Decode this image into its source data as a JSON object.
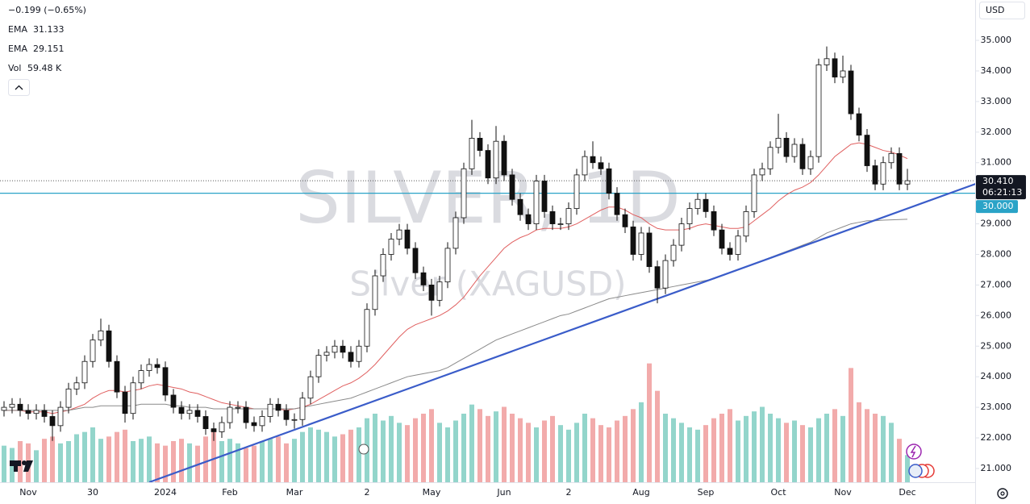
{
  "chart_data": {
    "type": "candlestick",
    "watermark": [
      "SILVER, 1D",
      "Silver (XAGUSD)"
    ],
    "change": "−0.199 (−0.65%)",
    "currency": "USD",
    "categories": [
      null,
      null,
      null,
      "Nov",
      null,
      null,
      null,
      null,
      null,
      null,
      null,
      "30",
      null,
      null,
      null,
      null,
      null,
      null,
      null,
      null,
      "2024",
      null,
      null,
      null,
      null,
      null,
      null,
      null,
      "Feb",
      null,
      null,
      null,
      null,
      null,
      null,
      null,
      "Mar",
      null,
      null,
      null,
      null,
      null,
      null,
      null,
      null,
      "2",
      null,
      null,
      null,
      null,
      null,
      null,
      null,
      "May",
      null,
      null,
      null,
      null,
      null,
      null,
      null,
      null,
      "Jun",
      null,
      null,
      null,
      null,
      null,
      null,
      null,
      "2",
      null,
      null,
      null,
      null,
      null,
      null,
      null,
      null,
      "Aug",
      null,
      null,
      null,
      null,
      null,
      null,
      null,
      "Sep",
      null,
      null,
      null,
      null,
      null,
      null,
      null,
      null,
      "Oct",
      null,
      null,
      null,
      null,
      null,
      null,
      null,
      "Nov",
      null,
      null,
      null,
      null,
      null,
      null,
      null,
      "Dec"
    ],
    "open": [
      22.9,
      23.0,
      23.1,
      22.9,
      22.8,
      22.9,
      22.7,
      22.4,
      23.0,
      23.6,
      23.8,
      24.5,
      25.2,
      25.5,
      24.5,
      23.5,
      22.8,
      23.8,
      24.2,
      24.4,
      24.3,
      23.4,
      23.0,
      22.8,
      22.9,
      22.7,
      22.3,
      22.2,
      22.5,
      23.0,
      23.0,
      22.5,
      22.4,
      22.7,
      23.1,
      22.9,
      22.6,
      22.6,
      23.3,
      24.0,
      24.7,
      24.8,
      25.0,
      24.8,
      24.5,
      25.0,
      26.2,
      27.3,
      28.0,
      28.5,
      28.8,
      28.2,
      27.4,
      27.0,
      26.5,
      27.1,
      28.2,
      29.2,
      30.8,
      31.8,
      31.4,
      30.5,
      31.7,
      30.6,
      29.8,
      29.3,
      29.0,
      30.4,
      29.4,
      29.0,
      29.0,
      29.5,
      30.6,
      31.2,
      31.0,
      30.8,
      30.0,
      29.3,
      28.9,
      28.0,
      28.7,
      27.6,
      26.9,
      27.8,
      28.3,
      29.0,
      29.5,
      29.8,
      29.4,
      28.8,
      28.2,
      28.0,
      28.6,
      29.4,
      30.6,
      30.8,
      31.5,
      31.8,
      31.2,
      31.6,
      30.8,
      31.2,
      34.2,
      34.4,
      33.8,
      34.0,
      32.6,
      31.9,
      30.9,
      30.3,
      31.0,
      31.3,
      30.3
    ],
    "high": [
      23.2,
      23.3,
      23.3,
      23.1,
      23.1,
      23.1,
      22.9,
      23.2,
      23.8,
      24.0,
      24.7,
      25.4,
      25.9,
      25.7,
      24.7,
      23.7,
      24.0,
      24.4,
      24.6,
      24.6,
      24.5,
      23.6,
      23.2,
      23.1,
      23.1,
      22.9,
      22.5,
      22.7,
      23.2,
      23.2,
      23.2,
      22.7,
      22.9,
      23.3,
      23.3,
      23.1,
      22.8,
      23.5,
      24.2,
      24.9,
      25.0,
      25.2,
      25.2,
      25.0,
      25.2,
      26.4,
      27.5,
      28.2,
      28.7,
      29.0,
      29.0,
      28.4,
      27.6,
      27.2,
      27.3,
      28.4,
      29.4,
      31.0,
      32.4,
      32.0,
      31.6,
      32.2,
      31.9,
      30.8,
      30.0,
      29.5,
      30.6,
      30.6,
      29.6,
      29.2,
      29.7,
      30.8,
      31.4,
      31.7,
      31.2,
      31.0,
      30.2,
      29.5,
      29.1,
      28.9,
      28.9,
      27.8,
      28.0,
      28.5,
      29.2,
      29.7,
      30.0,
      30.0,
      29.6,
      29.0,
      28.4,
      28.8,
      29.6,
      30.8,
      31.0,
      31.7,
      32.6,
      32.0,
      31.8,
      31.8,
      31.4,
      34.4,
      34.8,
      34.6,
      34.5,
      34.2,
      32.8,
      32.1,
      31.1,
      31.2,
      31.5,
      31.5,
      30.8
    ],
    "low": [
      22.7,
      22.8,
      22.7,
      22.6,
      22.6,
      22.5,
      21.9,
      22.2,
      22.8,
      23.4,
      23.6,
      24.3,
      25.0,
      24.3,
      23.3,
      22.5,
      22.6,
      23.6,
      24.0,
      24.1,
      23.2,
      22.8,
      22.6,
      22.6,
      22.5,
      22.1,
      21.9,
      22.0,
      22.3,
      22.8,
      22.3,
      22.2,
      22.2,
      22.5,
      22.7,
      22.4,
      22.3,
      22.4,
      23.1,
      23.8,
      24.5,
      24.6,
      24.6,
      24.3,
      24.3,
      24.8,
      26.0,
      27.1,
      27.8,
      28.3,
      28.0,
      27.2,
      26.8,
      26.0,
      26.3,
      26.9,
      28.0,
      29.0,
      30.6,
      31.2,
      30.3,
      30.3,
      30.4,
      29.6,
      29.1,
      28.8,
      28.8,
      29.2,
      28.8,
      28.8,
      28.8,
      29.3,
      30.4,
      30.8,
      30.6,
      29.8,
      29.1,
      28.7,
      27.8,
      27.8,
      27.4,
      26.4,
      26.7,
      27.6,
      28.1,
      28.8,
      29.3,
      29.2,
      28.6,
      28.0,
      27.8,
      27.8,
      28.4,
      29.2,
      30.4,
      30.6,
      31.3,
      31.0,
      31.0,
      30.6,
      30.6,
      31.0,
      34.0,
      33.6,
      33.6,
      32.4,
      31.7,
      30.7,
      30.1,
      30.1,
      30.8,
      30.1,
      30.1
    ],
    "close": [
      23.0,
      23.1,
      22.9,
      22.8,
      22.9,
      22.7,
      22.4,
      23.0,
      23.6,
      23.8,
      24.5,
      25.2,
      25.5,
      24.5,
      23.5,
      22.8,
      23.8,
      24.2,
      24.4,
      24.3,
      23.4,
      23.0,
      22.8,
      22.9,
      22.7,
      22.3,
      22.2,
      22.5,
      23.0,
      23.0,
      22.5,
      22.4,
      22.7,
      23.1,
      22.9,
      22.6,
      22.6,
      23.3,
      24.0,
      24.7,
      24.8,
      25.0,
      24.8,
      24.5,
      25.0,
      26.2,
      27.3,
      28.0,
      28.5,
      28.8,
      28.2,
      27.4,
      27.0,
      26.5,
      27.1,
      28.2,
      29.2,
      30.8,
      31.8,
      31.4,
      30.5,
      31.7,
      30.6,
      29.8,
      29.3,
      29.0,
      30.4,
      29.4,
      29.0,
      29.0,
      29.5,
      30.6,
      31.2,
      31.0,
      30.8,
      30.0,
      29.3,
      28.9,
      28.0,
      28.7,
      27.6,
      26.9,
      27.8,
      28.3,
      29.0,
      29.5,
      29.8,
      29.4,
      28.8,
      28.2,
      28.0,
      28.6,
      29.4,
      30.6,
      30.8,
      31.5,
      31.8,
      31.2,
      31.6,
      30.8,
      31.2,
      34.2,
      34.4,
      33.8,
      34.0,
      32.6,
      31.9,
      30.9,
      30.3,
      31.0,
      31.3,
      30.3,
      30.41
    ],
    "up_color": "#ffffff",
    "down_color": "#111111",
    "series": [
      {
        "name": "EMA",
        "color": "#e06060",
        "value_label": "31.133",
        "values": [
          22.9,
          22.9,
          22.9,
          22.85,
          22.85,
          22.85,
          22.8,
          22.85,
          22.9,
          23.0,
          23.1,
          23.3,
          23.45,
          23.55,
          23.55,
          23.5,
          23.55,
          23.6,
          23.7,
          23.75,
          23.7,
          23.65,
          23.6,
          23.5,
          23.45,
          23.35,
          23.25,
          23.15,
          23.1,
          23.05,
          23.0,
          22.95,
          22.95,
          22.95,
          22.95,
          22.9,
          22.95,
          23.0,
          23.1,
          23.25,
          23.4,
          23.55,
          23.7,
          23.8,
          23.95,
          24.15,
          24.4,
          24.7,
          25.0,
          25.3,
          25.55,
          25.7,
          25.8,
          25.9,
          26.0,
          26.15,
          26.35,
          26.6,
          26.95,
          27.3,
          27.6,
          27.9,
          28.2,
          28.4,
          28.55,
          28.65,
          28.8,
          28.85,
          28.85,
          28.85,
          28.9,
          29.0,
          29.15,
          29.3,
          29.45,
          29.55,
          29.55,
          29.45,
          29.3,
          29.2,
          29.0,
          28.85,
          28.8,
          28.8,
          28.8,
          28.85,
          28.95,
          29.0,
          28.95,
          28.9,
          28.85,
          28.85,
          28.9,
          29.1,
          29.3,
          29.5,
          29.75,
          29.95,
          30.1,
          30.2,
          30.35,
          30.6,
          30.9,
          31.2,
          31.4,
          31.6,
          31.65,
          31.6,
          31.5,
          31.4,
          31.35,
          31.25,
          31.133
        ]
      },
      {
        "name": "EMA",
        "color": "#8a8a8a",
        "value_label": "29.151",
        "values": [
          22.9,
          22.9,
          22.9,
          22.9,
          22.9,
          22.9,
          22.9,
          22.9,
          22.9,
          22.95,
          23.0,
          23.0,
          23.05,
          23.05,
          23.05,
          23.05,
          23.05,
          23.1,
          23.1,
          23.1,
          23.1,
          23.05,
          23.05,
          23.0,
          23.0,
          23.0,
          22.95,
          22.95,
          22.95,
          22.95,
          22.95,
          22.95,
          22.95,
          22.95,
          22.95,
          22.95,
          22.95,
          23.0,
          23.05,
          23.1,
          23.15,
          23.2,
          23.25,
          23.3,
          23.4,
          23.5,
          23.6,
          23.7,
          23.8,
          23.9,
          24.0,
          24.05,
          24.1,
          24.15,
          24.2,
          24.3,
          24.45,
          24.6,
          24.75,
          24.9,
          25.05,
          25.2,
          25.3,
          25.4,
          25.5,
          25.6,
          25.7,
          25.8,
          25.9,
          26.0,
          26.05,
          26.15,
          26.25,
          26.35,
          26.45,
          26.55,
          26.6,
          26.65,
          26.7,
          26.75,
          26.8,
          26.85,
          26.9,
          26.95,
          27.0,
          27.05,
          27.1,
          27.15,
          27.2,
          27.3,
          27.4,
          27.5,
          27.6,
          27.7,
          27.8,
          27.9,
          28.0,
          28.1,
          28.2,
          28.3,
          28.4,
          28.55,
          28.7,
          28.8,
          28.9,
          29.0,
          29.05,
          29.1,
          29.1,
          29.12,
          29.13,
          29.14,
          29.151
        ]
      }
    ],
    "volume": {
      "name": "Vol",
      "value_label": "59.48 K",
      "up_color": "#93d5cb",
      "down_color": "#f2abab",
      "vlim": [
        0,
        300
      ],
      "values": [
        80,
        75,
        90,
        85,
        70,
        95,
        100,
        85,
        90,
        105,
        110,
        120,
        95,
        100,
        110,
        115,
        90,
        95,
        100,
        85,
        80,
        90,
        95,
        85,
        80,
        100,
        110,
        90,
        95,
        85,
        75,
        80,
        90,
        95,
        100,
        85,
        95,
        110,
        120,
        115,
        110,
        100,
        105,
        115,
        120,
        140,
        150,
        135,
        145,
        130,
        125,
        140,
        150,
        160,
        130,
        120,
        135,
        150,
        170,
        160,
        145,
        155,
        165,
        150,
        140,
        130,
        120,
        135,
        145,
        125,
        115,
        130,
        150,
        140,
        125,
        120,
        135,
        145,
        160,
        175,
        260,
        200,
        150,
        140,
        130,
        120,
        115,
        125,
        140,
        150,
        160,
        135,
        145,
        155,
        165,
        150,
        140,
        130,
        135,
        125,
        120,
        140,
        150,
        160,
        145,
        250,
        175,
        160,
        150,
        145,
        130,
        95,
        59.48
      ]
    },
    "trendline": {
      "color": "#3a5cc9",
      "x": [
        18,
        120.5
      ],
      "y": [
        20.55,
        30.31
      ]
    },
    "level": {
      "value": 30,
      "label": "30.000",
      "color": "#2aa3c7"
    },
    "last_price": {
      "value": 30.41,
      "label": "30.410",
      "countdown": "06:21:13"
    },
    "ylim": [
      20.55,
      36.32
    ],
    "yticks": [
      {
        "value": 21,
        "label": "21.000"
      },
      {
        "value": 22,
        "label": "22.000"
      },
      {
        "value": 23,
        "label": "23.000"
      },
      {
        "value": 24,
        "label": "24.000"
      },
      {
        "value": 25,
        "label": "25.000"
      },
      {
        "value": 26,
        "label": "26.000"
      },
      {
        "value": 27,
        "label": "27.000"
      },
      {
        "value": 28,
        "label": "28.000"
      },
      {
        "value": 29,
        "label": "29.000"
      },
      {
        "value": 30,
        "label": "30.000"
      },
      {
        "value": 31,
        "label": "31.000"
      },
      {
        "value": 32,
        "label": "32.000"
      },
      {
        "value": 33,
        "label": "33.000"
      },
      {
        "value": 34,
        "label": "34.000"
      },
      {
        "value": 35,
        "label": "35.000"
      }
    ],
    "grid": false
  }
}
